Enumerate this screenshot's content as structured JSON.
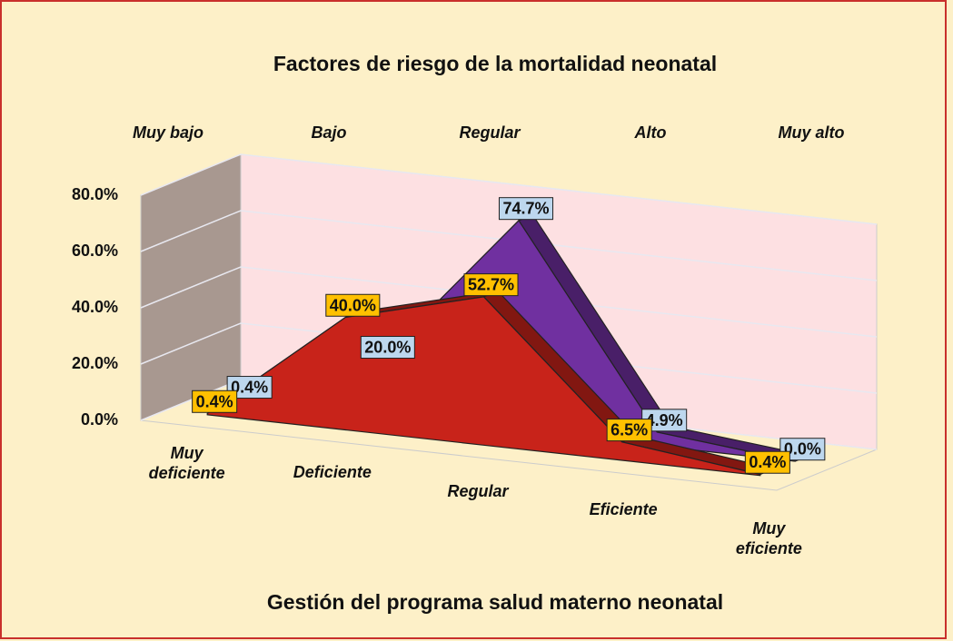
{
  "chart_data": {
    "type": "area3d",
    "title": "Factores de riesgo de la mortalidad neonatal",
    "x_label": "Gestión del programa salud materno neonatal",
    "categories": [
      "Muy deficiente",
      "Deficiente",
      "Regular",
      "Eficiente",
      "Muy eficiente"
    ],
    "series_axis_labels": [
      "Muy bajo",
      "Bajo",
      "Regular",
      "Alto",
      "Muy alto"
    ],
    "series": [
      {
        "color": "#7030a0",
        "label_color": "#bdd7ee",
        "values": [
          0.4,
          20.0,
          74.7,
          4.9,
          0.0
        ],
        "value_labels": [
          "0.4%",
          "20.0%",
          "74.7%",
          "4.9%",
          "0.0%"
        ]
      },
      {
        "color": "#c8231a",
        "label_color": "#ffc000",
        "values": [
          0.4,
          40.0,
          52.7,
          6.5,
          0.4
        ],
        "value_labels": [
          "0.4%",
          "40.0%",
          "52.7%",
          "6.5%",
          "0.4%"
        ]
      }
    ],
    "ylim": [
      0,
      80
    ],
    "yticks": [
      {
        "value": 0,
        "label": "0.0%"
      },
      {
        "value": 20,
        "label": "20.0%"
      },
      {
        "value": 40,
        "label": "40.0%"
      },
      {
        "value": 60,
        "label": "60.0%"
      },
      {
        "value": 80,
        "label": "80.0%"
      }
    ],
    "grid": true
  }
}
